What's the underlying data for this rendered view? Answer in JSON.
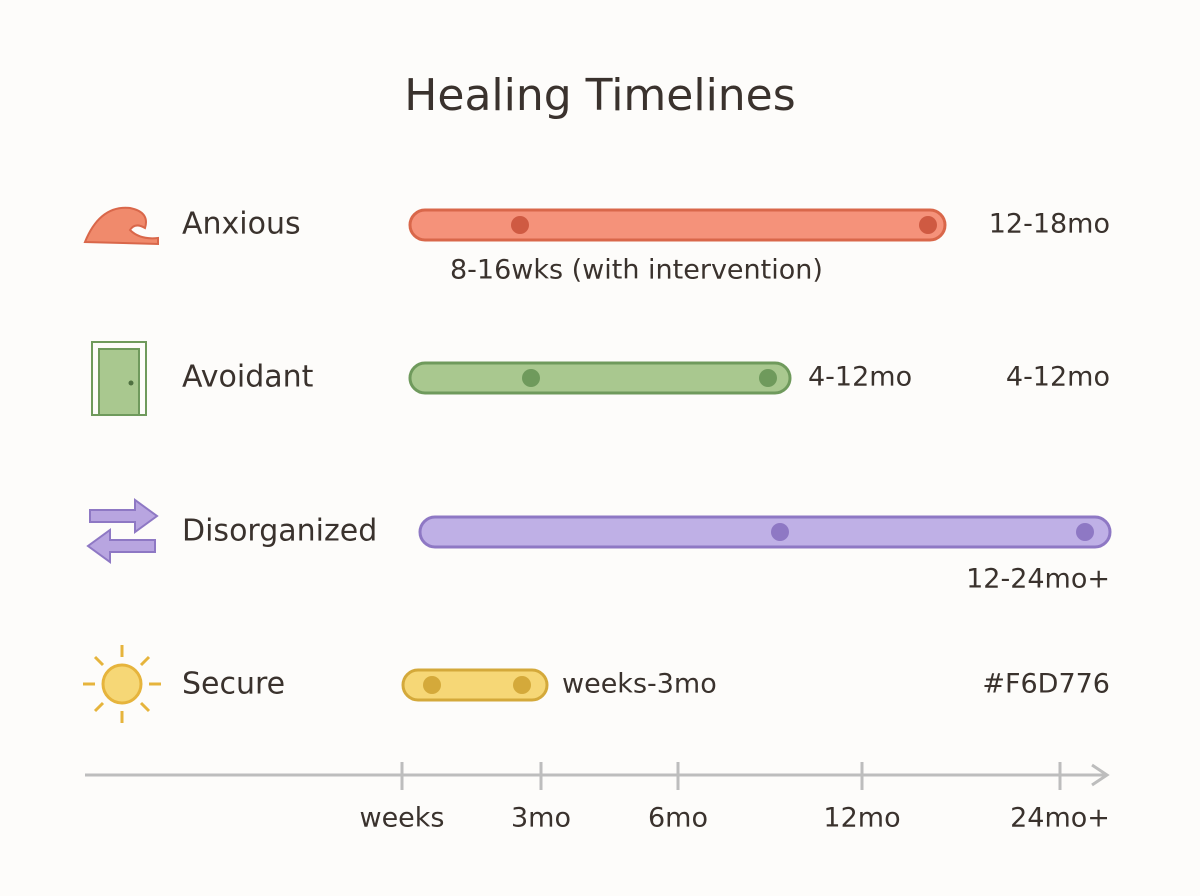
{
  "title": "Healing Timelines",
  "rows": [
    {
      "label": "Anxious",
      "range_label": "12-18mo",
      "note": "8-16wks (with intervention)"
    },
    {
      "label": "Avoidant",
      "range_label": "4-12mo",
      "side_label": "4-12mo"
    },
    {
      "label": "Disorganized",
      "range_label": "12-24mo+"
    },
    {
      "label": "Secure",
      "range_label": "weeks-3mo",
      "side_label": "#F6D776"
    }
  ],
  "axis": {
    "ticks": [
      "weeks",
      "3mo",
      "6mo",
      "12mo",
      "24mo+"
    ]
  }
}
